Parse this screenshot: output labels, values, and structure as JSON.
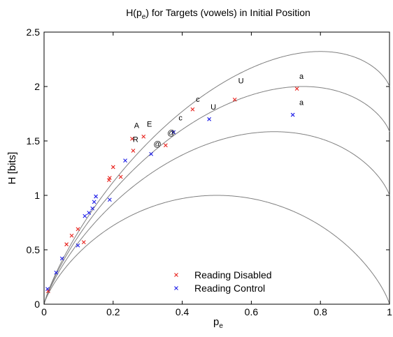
{
  "chart_data": {
    "type": "scatter",
    "title": "H(p",
    "title_sub": "e",
    "title_rest": ") for Targets (vowels) in Initial Position",
    "xlabel": "p",
    "xlabel_sub": "e",
    "ylabel": "H [bits]",
    "xlim": [
      0,
      1
    ],
    "ylim": [
      0,
      2.5
    ],
    "xticks": [
      0,
      0.2,
      0.4,
      0.6,
      0.8,
      1
    ],
    "xtick_labels": [
      "0",
      "0.2",
      "0.4",
      "0.6",
      "0.8",
      "1"
    ],
    "yticks": [
      0,
      0.5,
      1,
      1.5,
      2,
      2.5
    ],
    "ytick_labels": [
      "0",
      "0.5",
      "1",
      "1.5",
      "2",
      "2.5"
    ],
    "grid": false,
    "legend_position": "bottom-center",
    "reference_curves": [
      {
        "alphabet_size": 2
      },
      {
        "alphabet_size": 3
      },
      {
        "alphabet_size": 4
      },
      {
        "alphabet_size": 5
      }
    ],
    "series": [
      {
        "name": "Reading Disabled",
        "color": "#e8211c",
        "marker": "x",
        "points": [
          {
            "x": 0.012,
            "y": 0.12
          },
          {
            "x": 0.065,
            "y": 0.55
          },
          {
            "x": 0.08,
            "y": 0.63
          },
          {
            "x": 0.098,
            "y": 0.69
          },
          {
            "x": 0.115,
            "y": 0.57
          },
          {
            "x": 0.188,
            "y": 1.14
          },
          {
            "x": 0.19,
            "y": 1.16
          },
          {
            "x": 0.2,
            "y": 1.26
          },
          {
            "x": 0.222,
            "y": 1.17
          },
          {
            "x": 0.255,
            "y": 1.52
          },
          {
            "x": 0.258,
            "y": 1.41
          },
          {
            "x": 0.288,
            "y": 1.54
          },
          {
            "x": 0.352,
            "y": 1.46
          },
          {
            "x": 0.43,
            "y": 1.79
          },
          {
            "x": 0.552,
            "y": 1.88
          },
          {
            "x": 0.732,
            "y": 1.98
          }
        ]
      },
      {
        "name": "Reading Control",
        "color": "#1c1ce8",
        "marker": "x",
        "points": [
          {
            "x": 0.01,
            "y": 0.14
          },
          {
            "x": 0.035,
            "y": 0.29
          },
          {
            "x": 0.052,
            "y": 0.42
          },
          {
            "x": 0.098,
            "y": 0.54
          },
          {
            "x": 0.118,
            "y": 0.81
          },
          {
            "x": 0.13,
            "y": 0.84
          },
          {
            "x": 0.14,
            "y": 0.88
          },
          {
            "x": 0.145,
            "y": 0.94
          },
          {
            "x": 0.15,
            "y": 0.99
          },
          {
            "x": 0.19,
            "y": 0.96
          },
          {
            "x": 0.235,
            "y": 1.32
          },
          {
            "x": 0.31,
            "y": 1.38
          },
          {
            "x": 0.375,
            "y": 1.58
          },
          {
            "x": 0.478,
            "y": 1.7
          },
          {
            "x": 0.72,
            "y": 1.74
          }
        ]
      }
    ],
    "annotations": [
      {
        "text": "A",
        "x": 0.268,
        "y": 1.62
      },
      {
        "text": "E",
        "x": 0.305,
        "y": 1.63
      },
      {
        "text": "R",
        "x": 0.265,
        "y": 1.49
      },
      {
        "text": "@",
        "x": 0.328,
        "y": 1.45
      },
      {
        "text": "@",
        "x": 0.368,
        "y": 1.55
      },
      {
        "text": "c",
        "x": 0.395,
        "y": 1.69
      },
      {
        "text": "c",
        "x": 0.445,
        "y": 1.86
      },
      {
        "text": "U",
        "x": 0.49,
        "y": 1.79
      },
      {
        "text": "U",
        "x": 0.57,
        "y": 2.03
      },
      {
        "text": "a",
        "x": 0.745,
        "y": 2.07
      },
      {
        "text": "a",
        "x": 0.745,
        "y": 1.83
      }
    ]
  }
}
